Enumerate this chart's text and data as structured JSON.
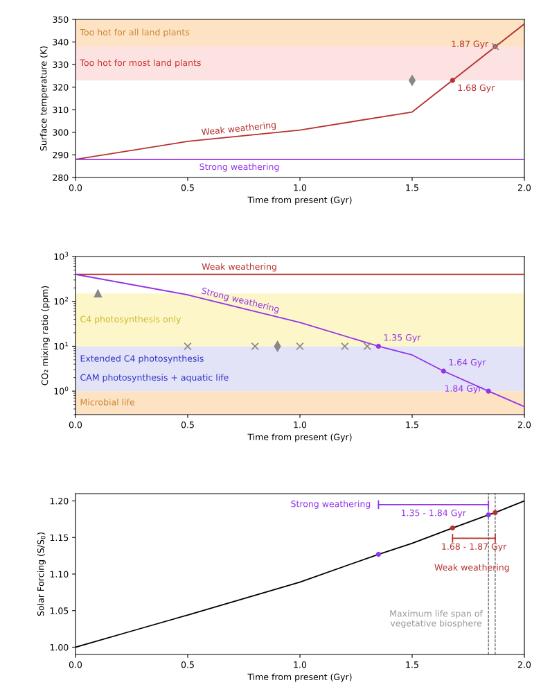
{
  "chart_data": [
    {
      "type": "line",
      "xlabel": "Time from present (Gyr)",
      "ylabel": "Surface temperature (K)",
      "xlim": [
        0.0,
        2.0
      ],
      "xticks": [
        {
          "value": 0,
          "label": "0.0"
        },
        {
          "value": 0.5,
          "label": "0.5"
        },
        {
          "value": 1,
          "label": "1.0"
        },
        {
          "value": 1.5,
          "label": "1.5"
        },
        {
          "value": 2,
          "label": "2.0"
        }
      ],
      "ylim": [
        280,
        350
      ],
      "yticks": [
        280,
        290,
        300,
        310,
        320,
        330,
        340,
        350
      ],
      "bands": [
        {
          "axis": "y",
          "from": 338,
          "to": 350,
          "label": "Too hot for all land plants",
          "color": "#fde3c4"
        },
        {
          "axis": "y",
          "from": 323,
          "to": 338,
          "label": "Too hot for most land plants",
          "color": "#fde2e2"
        }
      ],
      "series": [
        {
          "name": "Weak weathering",
          "color": "#b5322f",
          "x": [
            0.0,
            0.5,
            1.0,
            1.5,
            2.0
          ],
          "values": [
            288,
            296,
            301,
            309,
            348
          ]
        },
        {
          "name": "Strong weathering",
          "color": "#9333ea",
          "x": [
            0.0,
            2.0
          ],
          "values": [
            288,
            288
          ]
        },
        {
          "type": "scatter",
          "color": "#b5322f",
          "marker": "circle",
          "x": [
            1.68,
            1.87
          ],
          "values": [
            323,
            338
          ]
        },
        {
          "type": "scatter",
          "color": "#888888",
          "marker": "diamond",
          "x": [
            1.5
          ],
          "values": [
            323
          ]
        },
        {
          "type": "scatter",
          "color": "#888888",
          "marker": "cross",
          "x": [
            1.87
          ],
          "values": [
            338
          ]
        }
      ],
      "annotations": [
        {
          "text": "1.87 Gyr",
          "x": 1.87,
          "y": 338
        },
        {
          "text": "1.68 Gyr",
          "x": 1.68,
          "y": 323
        }
      ]
    },
    {
      "type": "line",
      "log": "y",
      "xlabel": "Time from present (Gyr)",
      "ylabel": "CO₂ mixing ratio (ppm)",
      "xlim": [
        0.0,
        2.0
      ],
      "xticks": [
        {
          "value": 0,
          "label": "0.0"
        },
        {
          "value": 0.5,
          "label": "0.5"
        },
        {
          "value": 1,
          "label": "1.0"
        },
        {
          "value": 1.5,
          "label": "1.5"
        },
        {
          "value": 2,
          "label": "2.0"
        }
      ],
      "ylim": [
        0.3,
        1000
      ],
      "yticks": [
        {
          "value": 1,
          "label": "10$^{0}$"
        },
        {
          "value": 10,
          "label": "10$^{1}$"
        },
        {
          "value": 100,
          "label": "10$^{2}$"
        },
        {
          "value": 1000,
          "label": "10$^{3}$"
        }
      ],
      "bands": [
        {
          "axis": "y",
          "from": 10,
          "to": 150,
          "label": "C4 photosynthesis only",
          "color": "#fdf6c8"
        },
        {
          "axis": "y",
          "from": 1,
          "to": 10,
          "label": "Extended C4 photosynthesis\nCAM photosynthesis + aquatic life",
          "color": "#e3e3f7"
        },
        {
          "axis": "y",
          "from": 0.3,
          "to": 1,
          "label": "Microbial life",
          "color": "#fde3c4"
        }
      ],
      "series": [
        {
          "name": "Weak weathering",
          "color": "#b5322f",
          "x": [
            0.0,
            2.0
          ],
          "values": [
            400,
            400
          ]
        },
        {
          "name": "Strong weathering",
          "color": "#9333ea",
          "x": [
            0.0,
            0.5,
            1.0,
            1.35,
            1.5,
            1.64,
            1.84,
            2.0
          ],
          "values": [
            400,
            140,
            34,
            10,
            6.4,
            2.8,
            1.0,
            0.45
          ]
        },
        {
          "type": "scatter",
          "color": "#9333ea",
          "marker": "circle",
          "x": [
            1.35,
            1.64,
            1.84
          ],
          "values": [
            10,
            2.8,
            1.0
          ]
        },
        {
          "type": "scatter",
          "color": "#888888",
          "marker": "cross",
          "x": [
            0.5,
            0.8,
            1.0,
            1.2,
            1.3
          ],
          "values": [
            10,
            10,
            10,
            10,
            10
          ]
        },
        {
          "type": "scatter",
          "color": "#888888",
          "marker": "diamond",
          "x": [
            0.9
          ],
          "values": [
            10
          ]
        },
        {
          "type": "scatter",
          "color": "#888888",
          "marker": "triangle",
          "x": [
            0.1
          ],
          "values": [
            150
          ]
        }
      ],
      "annotations": [
        {
          "text": "1.35 Gyr",
          "x": 1.35,
          "y": 10
        },
        {
          "text": "1.64 Gyr",
          "x": 1.64,
          "y": 2.8
        },
        {
          "text": "1.84 Gyr",
          "x": 1.84,
          "y": 1.0
        }
      ]
    },
    {
      "type": "line",
      "xlabel": "Time from present (Gyr)",
      "ylabel": "Solar Forcing (S/S$_{0}$)",
      "xlim": [
        0.0,
        2.0
      ],
      "xticks": [
        {
          "value": 0,
          "label": "0.0"
        },
        {
          "value": 0.5,
          "label": "0.5"
        },
        {
          "value": 1,
          "label": "1.0"
        },
        {
          "value": 1.5,
          "label": "1.5"
        },
        {
          "value": 2,
          "label": "2.0"
        }
      ],
      "ylim": [
        0.99,
        1.21
      ],
      "yticks": [
        {
          "value": 1.0,
          "label": "1.00"
        },
        {
          "value": 1.05,
          "label": "1.05"
        },
        {
          "value": 1.1,
          "label": "1.10"
        },
        {
          "value": 1.15,
          "label": "1.15"
        },
        {
          "value": 1.2,
          "label": "1.20"
        }
      ],
      "ref_lines": [
        {
          "axis": "x",
          "value": 1.84,
          "color": "#444444",
          "line_style": "dashed"
        },
        {
          "axis": "x",
          "value": 1.87,
          "color": "#444444",
          "line_style": "dashed"
        }
      ],
      "series": [
        {
          "color": "#000000",
          "x": [
            0.0,
            0.25,
            0.5,
            1.0,
            1.35,
            1.5,
            1.68,
            1.84,
            1.87,
            2.0
          ],
          "values": [
            1.0,
            1.022,
            1.044,
            1.089,
            1.127,
            1.142,
            1.163,
            1.181,
            1.184,
            1.2
          ]
        },
        {
          "type": "scatter",
          "color": "#9333ea",
          "marker": "circle",
          "x": [
            1.35,
            1.84
          ],
          "values": [
            1.127,
            1.181
          ]
        },
        {
          "type": "scatter",
          "color": "#b5322f",
          "marker": "circle",
          "x": [
            1.68,
            1.87
          ],
          "values": [
            1.163,
            1.184
          ]
        },
        {
          "type": "line",
          "name": "Strong weathering",
          "color": "#9333ea",
          "marker": "none",
          "x": [
            1.35,
            1.84
          ],
          "values": [
            1.195,
            1.195
          ]
        },
        {
          "type": "line",
          "name": "Weak weathering",
          "color": "#b5322f",
          "marker": "none",
          "x": [
            1.68,
            1.87
          ],
          "values": [
            1.149,
            1.149
          ]
        }
      ],
      "annotations": [
        "1.35 - 1.84 Gyr",
        "1.68 - 1.87 Gyr",
        "Maximum life span of\nvegetative biosphere"
      ]
    }
  ]
}
